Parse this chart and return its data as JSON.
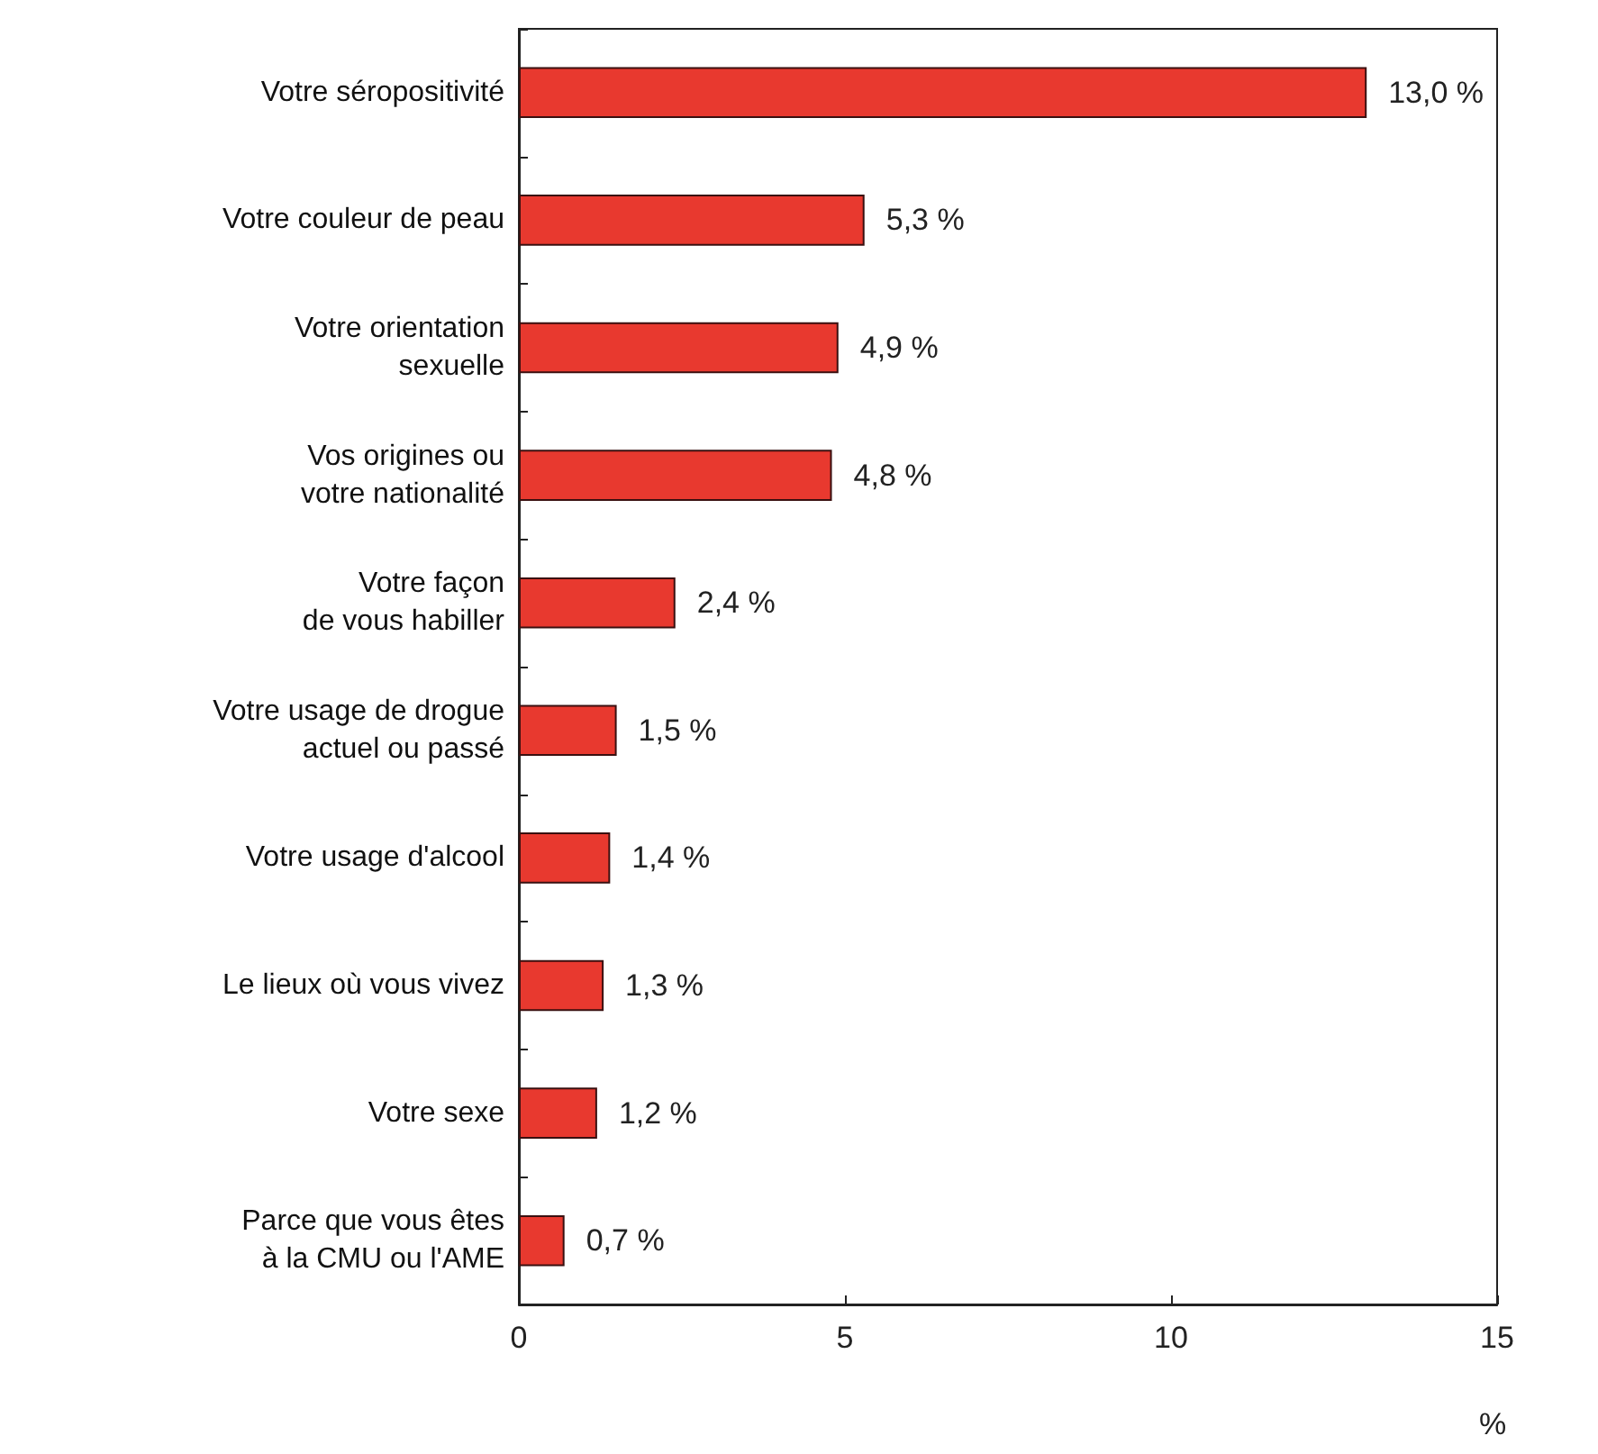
{
  "chart_data": {
    "type": "bar",
    "orientation": "horizontal",
    "xlabel": "%",
    "categories": [
      "Votre séropositivité",
      "Votre couleur de peau",
      "Votre orientation\nsexuelle",
      "Vos origines ou\nvotre nationalité",
      "Votre façon\nde vous habiller",
      "Votre usage de drogue\nactuel ou passé",
      "Votre usage d'alcool",
      "Le lieux où vous vivez",
      "Votre sexe",
      "Parce que vous êtes\nà la CMU ou l'AME"
    ],
    "values": [
      13.0,
      5.3,
      4.9,
      4.8,
      2.4,
      1.5,
      1.4,
      1.3,
      1.2,
      0.7
    ],
    "value_labels": [
      "13,0 %",
      "5,3 %",
      "4,9 %",
      "4,8 %",
      "2,4 %",
      "1,5 %",
      "1,4 %",
      "1,3 %",
      "1,2 %",
      "0,7 %"
    ],
    "color": "#e8392f",
    "xlim": [
      0,
      15
    ],
    "xticks": [
      0,
      5,
      10,
      15
    ],
    "grid": false
  }
}
